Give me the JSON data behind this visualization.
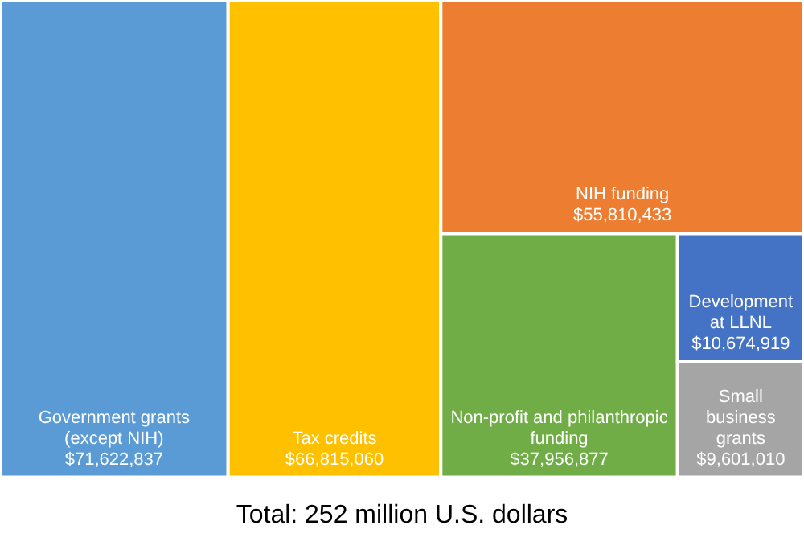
{
  "chart_data": {
    "type": "other",
    "title": "Total: 252 million U.S. dollars",
    "categories": [
      "Government grants (except NIH)",
      "Tax credits",
      "NIH funding",
      "Non-profit and philanthropic funding",
      "Development at LLNL",
      "Small business grants"
    ],
    "values": [
      71622837,
      66815060,
      55810433,
      37956877,
      10674919,
      9601010
    ],
    "value_labels": [
      "$71,622,837",
      "$66,815,060",
      "$55,810,433",
      "$37,956,877",
      "$10,674,919",
      "$9,601,010"
    ],
    "colors": [
      "#5b9bd5",
      "#ffc000",
      "#ed7d31",
      "#70ad47",
      "#4472c4",
      "#a5a5a5"
    ]
  }
}
